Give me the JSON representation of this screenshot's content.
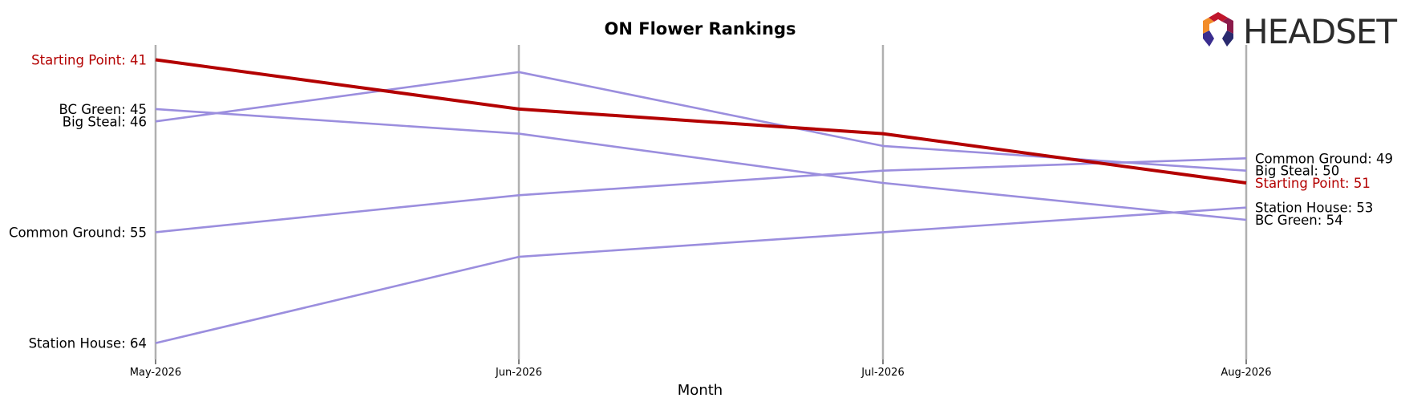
{
  "chart_data": {
    "type": "line",
    "title": "ON Flower Rankings",
    "xlabel": "Month",
    "ylabel": "",
    "categories": [
      "May-2026",
      "Jun-2026",
      "Jul-2026",
      "Aug-2026"
    ],
    "y_inverted": true,
    "ylim": [
      40,
      65
    ],
    "grid": "vertical lines at each month",
    "legend": "none; series labeled at both line ends",
    "series": [
      {
        "name": "Starting Point",
        "values": [
          41,
          45,
          47,
          51
        ],
        "color": "#b30000",
        "highlight": true
      },
      {
        "name": "BC Green",
        "values": [
          45,
          47,
          51,
          54
        ],
        "color": "#9b8ede"
      },
      {
        "name": "Big Steal",
        "values": [
          46,
          42,
          48,
          50
        ],
        "color": "#9b8ede"
      },
      {
        "name": "Common Ground",
        "values": [
          55,
          52,
          50,
          49
        ],
        "color": "#9b8ede"
      },
      {
        "name": "Station House",
        "values": [
          64,
          57,
          55,
          53
        ],
        "color": "#9b8ede"
      }
    ],
    "start_labels": [
      "Starting Point: 41",
      "BC Green: 45",
      "Big Steal: 46",
      "Common Ground: 55",
      "Station House: 64"
    ],
    "end_labels": [
      "Common Ground: 49",
      "Big Steal: 50",
      "Starting Point: 51",
      "Station House: 53",
      "BC Green: 54"
    ]
  },
  "logo": {
    "text": "HEADSET",
    "colors": [
      "#c0162c",
      "#8b1a4a",
      "#f28c28",
      "#3a2d8f",
      "#2a2a6e"
    ]
  }
}
